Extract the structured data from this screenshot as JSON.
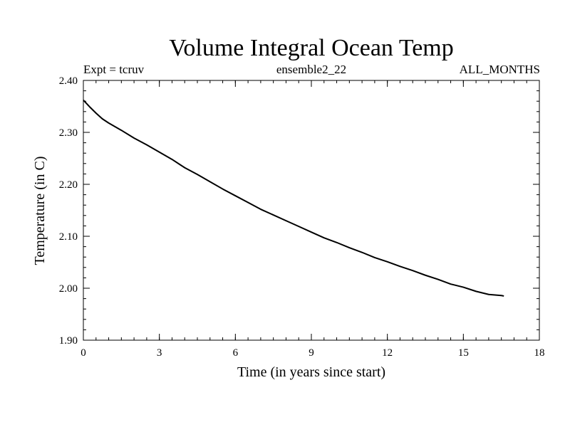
{
  "chart_data": {
    "type": "line",
    "title": "Volume Integral Ocean Temp",
    "subtitle_left": "Expt = tcruv",
    "subtitle_center": "ensemble2_22",
    "subtitle_right": "ALL_MONTHS",
    "xlabel": "Time (in years since start)",
    "ylabel": "Temperature (in C)",
    "xlim": [
      0,
      18
    ],
    "ylim": [
      1.9,
      2.4
    ],
    "x_ticks": [
      0,
      3,
      6,
      9,
      12,
      15,
      18
    ],
    "x_tick_labels": [
      "0",
      "3",
      "6",
      "9",
      "12",
      "15",
      "18"
    ],
    "y_ticks": [
      1.9,
      2.0,
      2.1,
      2.2,
      2.3,
      2.4
    ],
    "y_tick_labels": [
      "1.90",
      "2.00",
      "2.10",
      "2.20",
      "2.30",
      "2.40"
    ],
    "x_minor_step": 0.5,
    "y_minor_step": 0.02,
    "grid": false,
    "line_color": "#000000",
    "series": [
      {
        "x": [
          0,
          0.25,
          0.5,
          0.75,
          1.0,
          1.5,
          2.0,
          2.5,
          3.0,
          3.5,
          4.0,
          4.5,
          5.0,
          5.5,
          6.0,
          6.5,
          7.0,
          7.5,
          8.0,
          8.5,
          9.0,
          9.5,
          10.0,
          10.5,
          11.0,
          11.5,
          12.0,
          12.5,
          13.0,
          13.5,
          14.0,
          14.5,
          15.0,
          15.5,
          16.0,
          16.5,
          16.6
        ],
        "y": [
          2.362,
          2.349,
          2.337,
          2.326,
          2.318,
          2.304,
          2.289,
          2.276,
          2.262,
          2.248,
          2.232,
          2.219,
          2.205,
          2.191,
          2.178,
          2.165,
          2.152,
          2.141,
          2.13,
          2.119,
          2.108,
          2.097,
          2.088,
          2.078,
          2.069,
          2.059,
          2.051,
          2.042,
          2.034,
          2.025,
          2.017,
          2.008,
          2.002,
          1.994,
          1.988,
          1.986,
          1.985
        ]
      }
    ]
  }
}
